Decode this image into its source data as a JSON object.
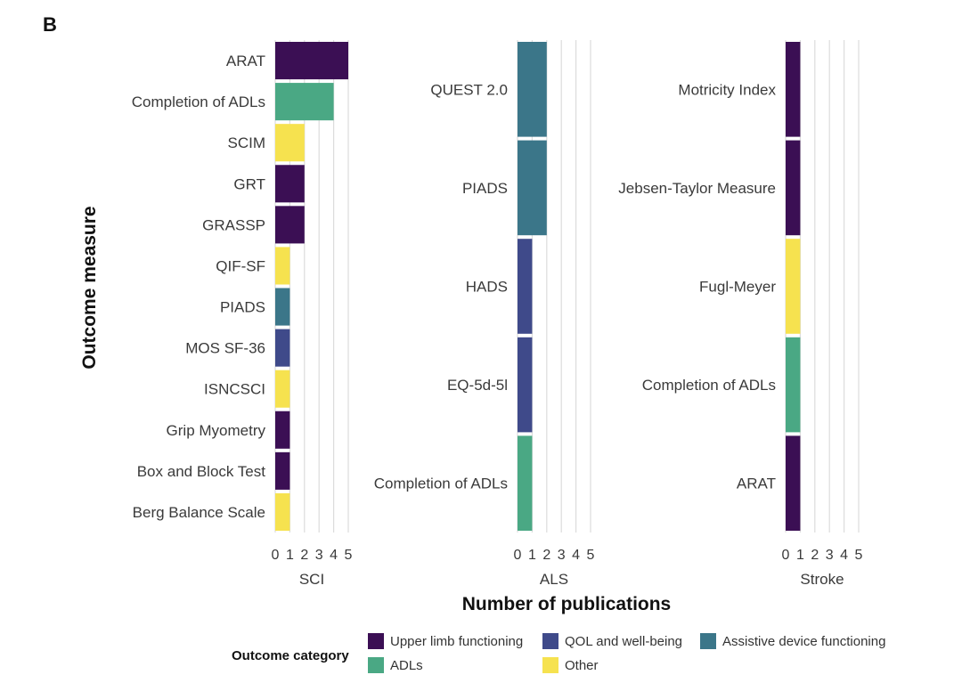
{
  "panel_letter": "B",
  "chart_data": {
    "type": "bar",
    "orientation": "horizontal",
    "ylabel": "Outcome measure",
    "xlabel": "Number of publications",
    "xlim": [
      0,
      5
    ],
    "x_ticks": [
      0,
      1,
      2,
      3,
      4,
      5
    ],
    "grid": true,
    "legend": {
      "title": "Outcome category",
      "placement": "bottom",
      "entries": [
        {
          "key": "upper_limb",
          "label": "Upper limb functioning",
          "color": "#3b0f54"
        },
        {
          "key": "qol",
          "label": "QOL and well-being",
          "color": "#3f4a8a"
        },
        {
          "key": "assistive",
          "label": "Assistive device functioning",
          "color": "#3b7689"
        },
        {
          "key": "adls",
          "label": "ADLs",
          "color": "#4aa884"
        },
        {
          "key": "other",
          "label": "Other",
          "color": "#f6e24f"
        }
      ]
    },
    "facets": [
      {
        "label": "SCI",
        "bars": [
          {
            "label": "ARAT",
            "value": 5,
            "category": "upper_limb"
          },
          {
            "label": "Completion of ADLs",
            "value": 4,
            "category": "adls"
          },
          {
            "label": "SCIM",
            "value": 2,
            "category": "other"
          },
          {
            "label": "GRT",
            "value": 2,
            "category": "upper_limb"
          },
          {
            "label": "GRASSP",
            "value": 2,
            "category": "upper_limb"
          },
          {
            "label": "QIF-SF",
            "value": 1,
            "category": "other"
          },
          {
            "label": "PIADS",
            "value": 1,
            "category": "assistive"
          },
          {
            "label": "MOS SF-36",
            "value": 1,
            "category": "qol"
          },
          {
            "label": "ISNCSCI",
            "value": 1,
            "category": "other"
          },
          {
            "label": "Grip Myometry",
            "value": 1,
            "category": "upper_limb"
          },
          {
            "label": "Box and Block Test",
            "value": 1,
            "category": "upper_limb"
          },
          {
            "label": "Berg Balance Scale",
            "value": 1,
            "category": "other"
          }
        ]
      },
      {
        "label": "ALS",
        "bars": [
          {
            "label": "QUEST 2.0",
            "value": 2,
            "category": "assistive"
          },
          {
            "label": "PIADS",
            "value": 2,
            "category": "assistive"
          },
          {
            "label": "HADS",
            "value": 1,
            "category": "qol"
          },
          {
            "label": "EQ-5d-5l",
            "value": 1,
            "category": "qol"
          },
          {
            "label": "Completion of ADLs",
            "value": 1,
            "category": "adls"
          }
        ]
      },
      {
        "label": "Stroke",
        "bars": [
          {
            "label": "Motricity Index",
            "value": 1,
            "category": "upper_limb"
          },
          {
            "label": "Jebsen-Taylor Measure",
            "value": 1,
            "category": "upper_limb"
          },
          {
            "label": "Fugl-Meyer",
            "value": 1,
            "category": "other"
          },
          {
            "label": "Completion of ADLs",
            "value": 1,
            "category": "adls"
          },
          {
            "label": "ARAT",
            "value": 1,
            "category": "upper_limb"
          }
        ]
      }
    ]
  }
}
